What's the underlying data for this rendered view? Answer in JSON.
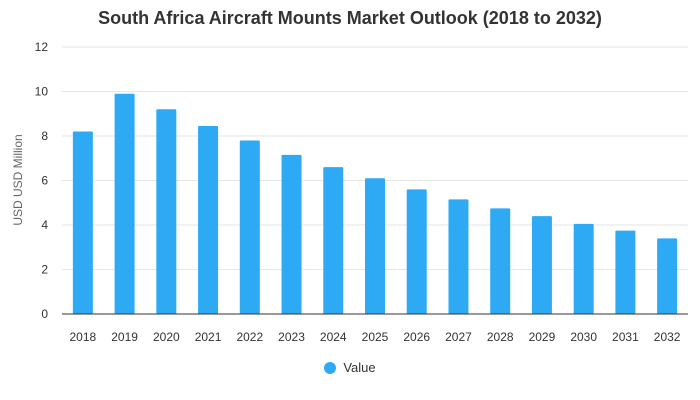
{
  "chart_data": {
    "type": "bar",
    "title": "South Africa Aircraft Mounts Market Outlook (2018 to 2032)",
    "xlabel": "",
    "ylabel": "USD USD Million",
    "categories": [
      "2018",
      "2019",
      "2020",
      "2021",
      "2022",
      "2023",
      "2024",
      "2025",
      "2026",
      "2027",
      "2028",
      "2029",
      "2030",
      "2031",
      "2032"
    ],
    "series": [
      {
        "name": "Value",
        "color": "#2eaaf5",
        "values": [
          8.2,
          9.9,
          9.2,
          8.45,
          7.8,
          7.15,
          6.6,
          6.1,
          5.6,
          5.15,
          4.75,
          4.4,
          4.05,
          3.75,
          3.4
        ]
      }
    ],
    "ylim": [
      0,
      12
    ],
    "yticks": [
      0,
      2,
      4,
      6,
      8,
      10,
      12
    ],
    "grid": true,
    "legend_position": "bottom-center"
  }
}
